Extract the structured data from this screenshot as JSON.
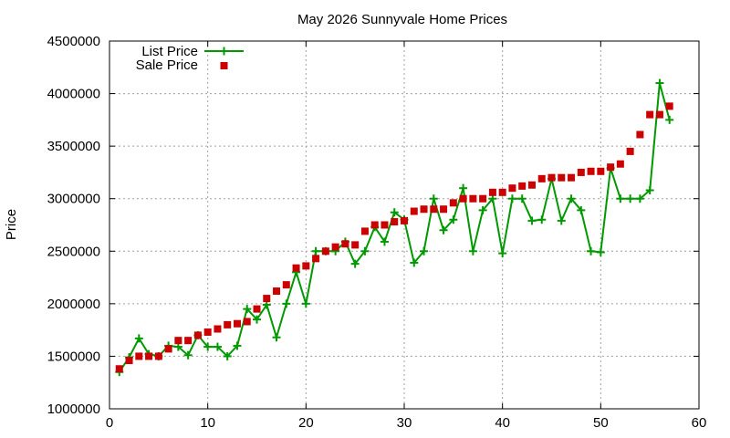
{
  "chart_data": {
    "type": "line",
    "title": "May 2026 Sunnyvale Home Prices",
    "xlabel": "",
    "ylabel": "Price",
    "xlim": [
      0,
      60
    ],
    "ylim": [
      1000000,
      4500000
    ],
    "x_ticks": [
      0,
      10,
      20,
      30,
      40,
      50,
      60
    ],
    "y_ticks": [
      1000000,
      1500000,
      2000000,
      2500000,
      3000000,
      3500000,
      4000000,
      4500000
    ],
    "grid": true,
    "legend_position": "top-left",
    "series": [
      {
        "name": "List Price",
        "color": "#009900",
        "style": "line-with-plus-markers",
        "x": [
          1,
          2,
          3,
          4,
          5,
          6,
          7,
          8,
          9,
          10,
          11,
          12,
          13,
          14,
          15,
          16,
          17,
          18,
          19,
          20,
          21,
          22,
          23,
          24,
          25,
          26,
          27,
          28,
          29,
          30,
          31,
          32,
          33,
          34,
          35,
          36,
          37,
          38,
          39,
          40,
          41,
          42,
          43,
          44,
          45,
          46,
          47,
          48,
          49,
          50,
          51,
          52,
          53,
          54,
          55,
          56,
          57
        ],
        "values": [
          1350000,
          1490000,
          1670000,
          1520000,
          1500000,
          1600000,
          1590000,
          1510000,
          1700000,
          1590000,
          1590000,
          1500000,
          1600000,
          1950000,
          1850000,
          1990000,
          1680000,
          2000000,
          2300000,
          2000000,
          2500000,
          2500000,
          2500000,
          2590000,
          2380000,
          2500000,
          2730000,
          2590000,
          2870000,
          2800000,
          2390000,
          2500000,
          3000000,
          2700000,
          2800000,
          3100000,
          2500000,
          2890000,
          3000000,
          2480000,
          3000000,
          3000000,
          2790000,
          2800000,
          3190000,
          2790000,
          3000000,
          2890000,
          2500000,
          2490000,
          3290000,
          3000000,
          3000000,
          3000000,
          3080000,
          4100000,
          3750000
        ]
      },
      {
        "name": "Sale Price",
        "color": "#cc0000",
        "style": "square-markers",
        "x": [
          1,
          2,
          3,
          4,
          5,
          6,
          7,
          8,
          9,
          10,
          11,
          12,
          13,
          14,
          15,
          16,
          17,
          18,
          19,
          20,
          21,
          22,
          23,
          24,
          25,
          26,
          27,
          28,
          29,
          30,
          31,
          32,
          33,
          34,
          35,
          36,
          37,
          38,
          39,
          40,
          41,
          42,
          43,
          44,
          45,
          46,
          47,
          48,
          49,
          50,
          51,
          52,
          53,
          54,
          55,
          56,
          57
        ],
        "values": [
          1380000,
          1460000,
          1500000,
          1500000,
          1500000,
          1570000,
          1650000,
          1650000,
          1700000,
          1730000,
          1760000,
          1800000,
          1810000,
          1830000,
          1950000,
          2050000,
          2120000,
          2180000,
          2340000,
          2360000,
          2430000,
          2500000,
          2540000,
          2570000,
          2560000,
          2690000,
          2750000,
          2750000,
          2780000,
          2790000,
          2880000,
          2900000,
          2900000,
          2900000,
          2960000,
          3000000,
          3000000,
          3000000,
          3060000,
          3060000,
          3100000,
          3120000,
          3130000,
          3190000,
          3200000,
          3200000,
          3200000,
          3250000,
          3260000,
          3260000,
          3300000,
          3330000,
          3450000,
          3610000,
          3800000,
          3800000,
          3880000
        ]
      }
    ]
  }
}
